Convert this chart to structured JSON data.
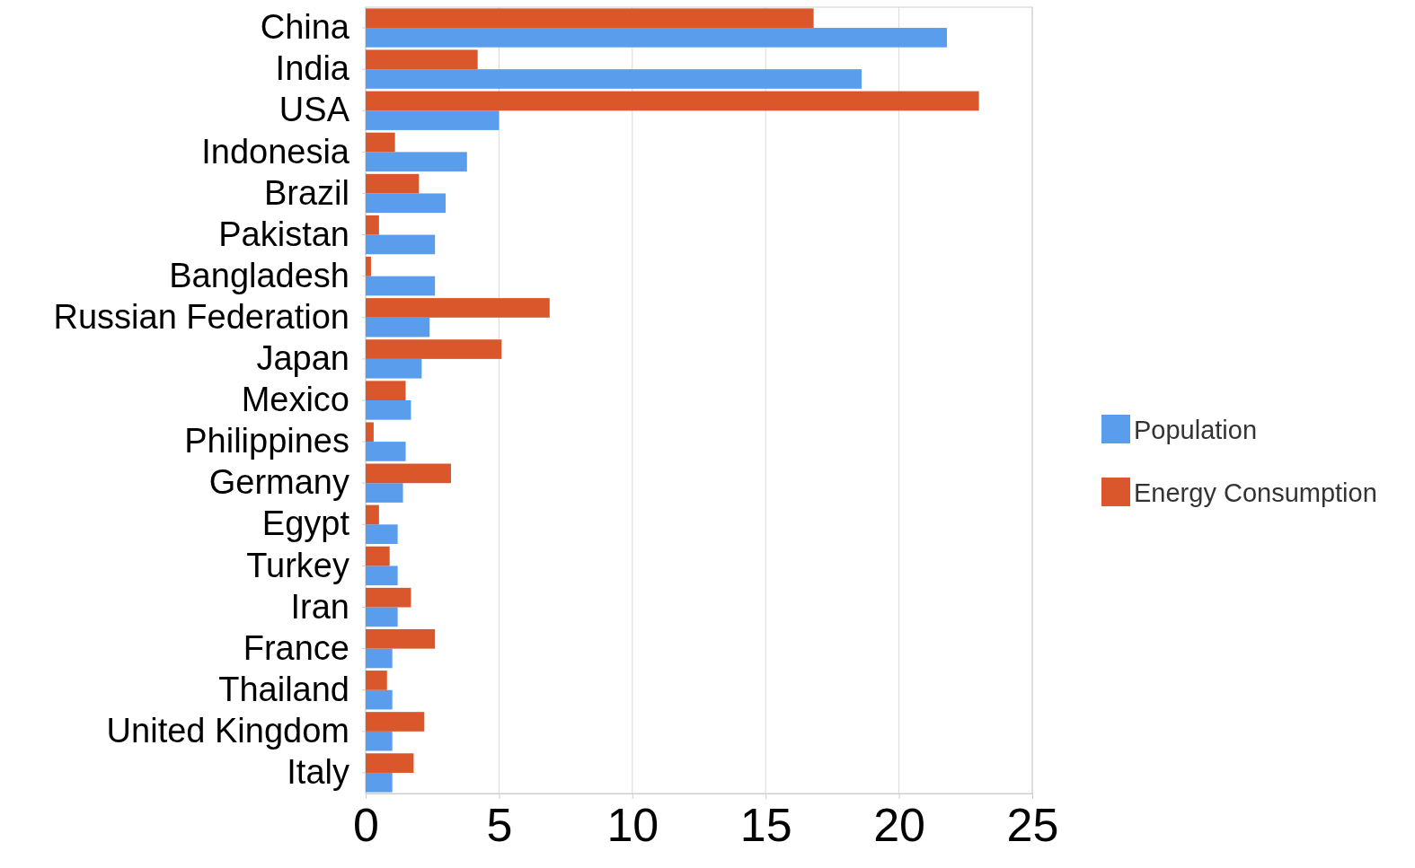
{
  "chart_data": {
    "type": "bar",
    "orientation": "horizontal",
    "categories": [
      "China",
      "India",
      "USA",
      "Indonesia",
      "Brazil",
      "Pakistan",
      "Bangladesh",
      "Russian Federation",
      "Japan",
      "Mexico",
      "Philippines",
      "Germany",
      "Egypt",
      "Turkey",
      "Iran",
      "France",
      "Thailand",
      "United Kingdom",
      "Italy"
    ],
    "series": [
      {
        "name": "Population",
        "color": "#5b9ded",
        "values": [
          21.8,
          18.6,
          5.0,
          3.8,
          3.0,
          2.6,
          2.6,
          2.4,
          2.1,
          1.7,
          1.5,
          1.4,
          1.2,
          1.2,
          1.2,
          1.0,
          1.0,
          1.0,
          1.0
        ]
      },
      {
        "name": "Energy Consumption",
        "color": "#d9572a",
        "values": [
          16.8,
          4.2,
          23.0,
          1.1,
          2.0,
          0.5,
          0.2,
          6.9,
          5.1,
          1.5,
          0.3,
          3.2,
          0.5,
          0.9,
          1.7,
          2.6,
          0.8,
          2.2,
          1.8
        ]
      }
    ],
    "xlim": [
      0,
      25
    ],
    "xticks": [
      0,
      5,
      10,
      15,
      20,
      25
    ],
    "grid": "x",
    "legend": "right"
  }
}
